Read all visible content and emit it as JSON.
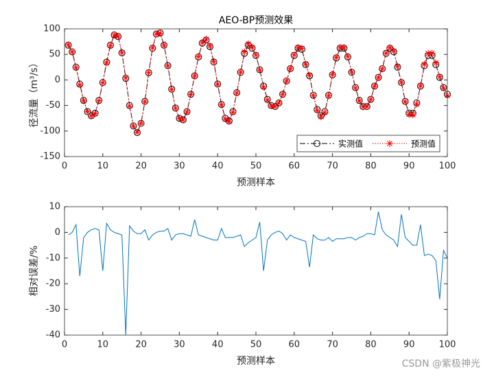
{
  "chart_data": [
    {
      "type": "line",
      "title": "AEO-BP预测效果",
      "xlabel": "预测样本",
      "ylabel": "径流量（m³/s）",
      "xlim": [
        0,
        100
      ],
      "ylim": [
        -150,
        100
      ],
      "xticks": [
        0,
        10,
        20,
        30,
        40,
        50,
        60,
        70,
        80,
        90,
        100
      ],
      "yticks": [
        -150,
        -100,
        -50,
        0,
        50,
        100
      ],
      "legend": "lower right",
      "x": [
        1,
        2,
        3,
        4,
        5,
        6,
        7,
        8,
        9,
        10,
        11,
        12,
        13,
        14,
        15,
        16,
        17,
        18,
        19,
        20,
        21,
        22,
        23,
        24,
        25,
        26,
        27,
        28,
        29,
        30,
        31,
        32,
        33,
        34,
        35,
        36,
        37,
        38,
        39,
        40,
        41,
        42,
        43,
        44,
        45,
        46,
        47,
        48,
        49,
        50,
        51,
        52,
        53,
        54,
        55,
        56,
        57,
        58,
        59,
        60,
        61,
        62,
        63,
        64,
        65,
        66,
        67,
        68,
        69,
        70,
        71,
        72,
        73,
        74,
        75,
        76,
        77,
        78,
        79,
        80,
        81,
        82,
        83,
        84,
        85,
        86,
        87,
        88,
        89,
        90,
        91,
        92,
        93,
        94,
        95,
        96,
        97,
        98,
        99,
        100
      ],
      "series": [
        {
          "name": "实测值",
          "color": "#000000",
          "linestyle": "dashdot",
          "marker": "o",
          "values": [
            68,
            55,
            25,
            -8,
            -40,
            -62,
            -70,
            -65,
            -40,
            -5,
            35,
            68,
            88,
            85,
            53,
            3,
            -50,
            -90,
            -103,
            -85,
            -42,
            14,
            62,
            90,
            92,
            68,
            28,
            -18,
            -55,
            -75,
            -78,
            -62,
            -28,
            8,
            45,
            72,
            78,
            65,
            35,
            -8,
            -48,
            -75,
            -80,
            -62,
            -25,
            15,
            52,
            68,
            62,
            48,
            20,
            -12,
            -38,
            -50,
            -52,
            -45,
            -28,
            -2,
            22,
            48,
            62,
            60,
            30,
            8,
            -30,
            -58,
            -70,
            -62,
            -30,
            10,
            43,
            62,
            62,
            45,
            15,
            -15,
            -40,
            -52,
            -52,
            -38,
            -12,
            5,
            22,
            52,
            62,
            55,
            25,
            -5,
            -42,
            -65,
            -65,
            -45,
            -12,
            28,
            48,
            48,
            30,
            5,
            -15,
            -28
          ]
        },
        {
          "name": "预测值",
          "color": "#ff0000",
          "linestyle": "dotted",
          "marker": "*",
          "values": [
            68.7,
            55,
            24.3,
            -9.4,
            -40.8,
            -62,
            -70.7,
            -66,
            -40.4,
            -5.75,
            33.8,
            67.3,
            88,
            85.4,
            53.5,
            4.2,
            -51.3,
            -90.5,
            -102.5,
            -84.6,
            -42.4,
            14.4,
            62.6,
            90,
            91.5,
            67.7,
            27.6,
            -18.5,
            -55.6,
            -75.4,
            -78.4,
            -62.6,
            -28.4,
            7.6,
            45.5,
            73,
            79.6,
            66.6,
            36,
            -8.2,
            -48.7,
            -76.5,
            -81.6,
            -63.2,
            -25.4,
            15.2,
            54.9,
            70.7,
            63.9,
            49,
            19.2,
            -13.8,
            -39.1,
            -50.5,
            -52,
            -45.2,
            -28.1,
            -2.1,
            22.2,
            49,
            63.6,
            61.8,
            31,
            9.1,
            -30.3,
            -59.5,
            -72.1,
            -63.9,
            -30.6,
            10.4,
            44.1,
            63.6,
            63.6,
            45.9,
            15.3,
            -15.5,
            -40.8,
            -52.8,
            -52.3,
            -38.2,
            -12.1,
            4.6,
            21.8,
            52.5,
            63.2,
            56.7,
            26.4,
            -4.65,
            -42.8,
            -67.3,
            -68.3,
            -47.3,
            -11.6,
            30.5,
            52,
            52.3,
            33.3,
            6.3,
            -16,
            -30.8
          ]
        }
      ]
    },
    {
      "type": "line",
      "xlabel": "预测样本",
      "ylabel": "相对误差/%",
      "xlim": [
        0,
        100
      ],
      "ylim": [
        -40,
        10
      ],
      "xticks": [
        0,
        10,
        20,
        30,
        40,
        50,
        60,
        70,
        80,
        90,
        100
      ],
      "yticks": [
        -40,
        -30,
        -20,
        -10,
        0,
        10
      ],
      "x": [
        1,
        2,
        3,
        4,
        5,
        6,
        7,
        8,
        9,
        10,
        11,
        12,
        13,
        14,
        15,
        16,
        17,
        18,
        19,
        20,
        21,
        22,
        23,
        24,
        25,
        26,
        27,
        28,
        29,
        30,
        31,
        32,
        33,
        34,
        35,
        36,
        37,
        38,
        39,
        40,
        41,
        42,
        43,
        44,
        45,
        46,
        47,
        48,
        49,
        50,
        51,
        52,
        53,
        54,
        55,
        56,
        57,
        58,
        59,
        60,
        61,
        62,
        63,
        64,
        65,
        66,
        67,
        68,
        69,
        70,
        71,
        72,
        73,
        74,
        75,
        76,
        77,
        78,
        79,
        80,
        81,
        82,
        83,
        84,
        85,
        86,
        87,
        88,
        89,
        90,
        91,
        92,
        93,
        94,
        95,
        96,
        97,
        98,
        99,
        100
      ],
      "series": [
        {
          "color": "#0072bd",
          "linestyle": "solid",
          "values": [
            -1,
            0,
            3,
            -17,
            -2,
            0,
            1,
            1.5,
            1,
            -15,
            3.5,
            1,
            0,
            -0.5,
            -1,
            -40,
            2.5,
            0.5,
            -0.5,
            -0.5,
            1,
            -3,
            -1,
            0,
            0.5,
            0.5,
            1.5,
            -3,
            -1,
            -0.5,
            -0.5,
            -1,
            -1.5,
            5,
            -1,
            -1.5,
            -2,
            -2.5,
            -3,
            -3,
            1.5,
            -2,
            -2,
            -2,
            -1.5,
            -1,
            -5.5,
            -4,
            -3,
            -2,
            4,
            -15,
            -3,
            -1,
            0,
            0.5,
            -0.5,
            -3,
            -1,
            -2,
            -2.5,
            -3,
            -3.5,
            -13.5,
            -1,
            -2.5,
            -3,
            -3,
            -2,
            -3.5,
            -2.5,
            -2.5,
            -2.5,
            -2,
            -2,
            -3,
            -2,
            -1.5,
            -0.5,
            -0.5,
            -1,
            8,
            1,
            -1,
            -2,
            -3,
            -5.5,
            7,
            -2,
            -3.5,
            -5,
            -5,
            3,
            -9,
            -8.5,
            -9,
            -11,
            -26,
            -7,
            -10
          ]
        }
      ]
    }
  ],
  "watermark": "CSDN @紫极神光"
}
